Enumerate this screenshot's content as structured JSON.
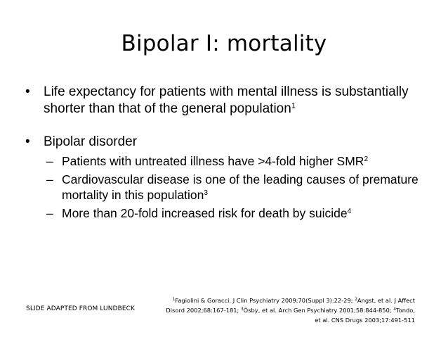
{
  "slide": {
    "title": "Bipolar I: mortality",
    "bullet1": {
      "text": "Life expectancy for patients with mental illness is substantially shorter than that of the general population",
      "ref": "1"
    },
    "bullet2": {
      "text": "Bipolar disorder",
      "subs": [
        {
          "text": "Patients with untreated illness have >4-fold higher SMR",
          "ref": "2"
        },
        {
          "text": "Cardiovascular disease is one of the leading causes of premature mortality in this population",
          "ref": "3"
        },
        {
          "text": "More than 20-fold increased risk for death by suicide",
          "ref": "4"
        }
      ]
    },
    "bullet_glyph": "•",
    "dash_glyph": "–",
    "adapted_note": "SLIDE ADAPTED FROM LUNDBECK",
    "references": [
      {
        "num": "1",
        "text": "Fagiolini & Goracci. J Clin Psychiatry 2009;70(Suppl 3):22-29; "
      },
      {
        "num": "2",
        "text": "Angst, et al. J Affect Disord 2002;68:167-181; "
      },
      {
        "num": "3",
        "text": "Ösby, et al. Arch Gen Psychiatry 2001;58:844-850; "
      },
      {
        "num": "4",
        "text": "Tondo, et al. CNS Drugs 2003;17:491-511"
      }
    ]
  }
}
